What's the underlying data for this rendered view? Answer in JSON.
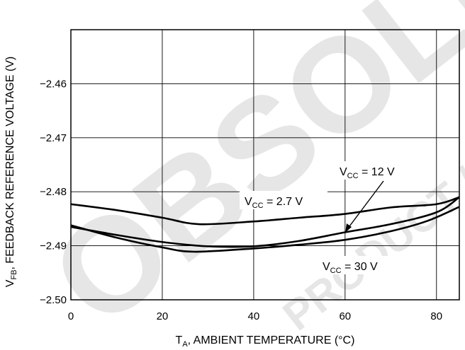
{
  "watermark": {
    "main": "OBSOLETE",
    "secondary": "PRODUCT / DEVICE"
  },
  "chart_data": {
    "type": "line",
    "xlabel": "TA, AMBIENT TEMPERATURE (°C)",
    "xlabel_parts": {
      "base": "T",
      "sub": "A",
      "rest": ", AMBIENT TEMPERATURE (°C)"
    },
    "ylabel": "VFB, FEEDBACK REFERENCE VOLTAGE (V)",
    "ylabel_parts": {
      "base": "V",
      "sub": "FB",
      "rest": ", FEEDBACK REFERENCE VOLTAGE (V)"
    },
    "xlim": [
      0,
      85
    ],
    "ylim": [
      -2.5,
      -2.45
    ],
    "x_ticks": [
      0,
      20,
      40,
      60,
      80
    ],
    "x_tick_labels": [
      "0",
      "20",
      "40",
      "60",
      "80"
    ],
    "y_ticks": [
      -2.46,
      -2.47,
      -2.48,
      -2.49,
      -2.5
    ],
    "y_tick_labels": [
      "−2.46",
      "−2.47",
      "−2.48",
      "−2.49",
      "−2.50"
    ],
    "grid": true,
    "series": [
      {
        "name": "VCC = 2.7 V",
        "label_parts": {
          "base": "V",
          "sub": "CC",
          "rest": " = 2.7 V"
        },
        "x": [
          0,
          10,
          20,
          28,
          40,
          50,
          60,
          70,
          80,
          85
        ],
        "y": [
          -2.4823,
          -2.4834,
          -2.4848,
          -2.486,
          -2.4855,
          -2.4848,
          -2.4841,
          -2.4829,
          -2.4823,
          -2.481
        ]
      },
      {
        "name": "VCC = 12 V",
        "label_parts": {
          "base": "V",
          "sub": "CC",
          "rest": " = 12 V"
        },
        "x": [
          0,
          10,
          20,
          30,
          40,
          50,
          60,
          70,
          80,
          85
        ],
        "y": [
          -2.4865,
          -2.488,
          -2.4893,
          -2.4901,
          -2.4901,
          -2.4891,
          -2.4875,
          -2.486,
          -2.4838,
          -2.481
        ]
      },
      {
        "name": "VCC = 30 V",
        "label_parts": {
          "base": "V",
          "sub": "CC",
          "rest": " = 30 V"
        },
        "x": [
          0,
          10,
          20,
          27,
          40,
          50,
          60,
          70,
          78,
          85
        ],
        "y": [
          -2.4862,
          -2.4885,
          -2.4903,
          -2.4911,
          -2.4905,
          -2.4898,
          -2.4889,
          -2.4873,
          -2.4854,
          -2.4828
        ]
      }
    ],
    "annotations": [
      {
        "series": "VCC = 2.7 V"
      },
      {
        "series": "VCC = 12 V",
        "arrow": true
      },
      {
        "series": "VCC = 30 V"
      }
    ]
  }
}
